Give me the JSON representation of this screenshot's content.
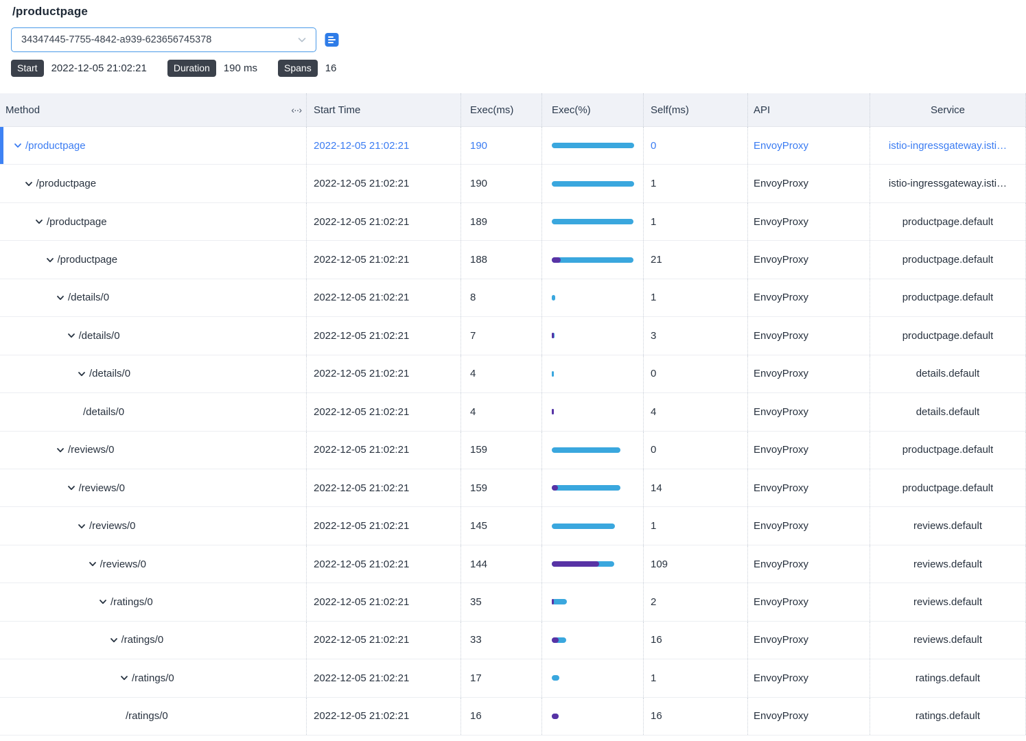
{
  "header": {
    "title": "/productpage",
    "trace_id": "34347445-7755-4842-a939-623656745378",
    "badges": [
      {
        "label": "Start",
        "value": "2022-12-05 21:02:21"
      },
      {
        "label": "Duration",
        "value": "190 ms"
      },
      {
        "label": "Spans",
        "value": "16"
      }
    ]
  },
  "icons": {
    "select_caret": "chevron-down-icon",
    "copy": "copy-icon",
    "column_resize": "column-resize-icon",
    "resize_glyph": "‹··›"
  },
  "colors": {
    "accent_blue": "#3b7cf2",
    "selected_indicator": "#3e82f4",
    "bar_blue": "#3aa7de",
    "bar_purple": "#5833a5",
    "badge_bg": "#3b414b",
    "header_bg": "#f0f2f7",
    "select_border": "#4a9ae8"
  },
  "table": {
    "columns": [
      "Method",
      "Start Time",
      "Exec(ms)",
      "Exec(%)",
      "Self(ms)",
      "API",
      "Service"
    ],
    "total_ms": 190,
    "rows": [
      {
        "method": "/productpage",
        "level": 0,
        "expandable": true,
        "selected": true,
        "start_time": "2022-12-05 21:02:21",
        "exec_ms": 190,
        "self_ms": 0,
        "api": "EnvoyProxy",
        "service": "istio-ingressgateway.isti…"
      },
      {
        "method": "/productpage",
        "level": 1,
        "expandable": true,
        "selected": false,
        "start_time": "2022-12-05 21:02:21",
        "exec_ms": 190,
        "self_ms": 1,
        "api": "EnvoyProxy",
        "service": "istio-ingressgateway.isti…"
      },
      {
        "method": "/productpage",
        "level": 2,
        "expandable": true,
        "selected": false,
        "start_time": "2022-12-05 21:02:21",
        "exec_ms": 189,
        "self_ms": 1,
        "api": "EnvoyProxy",
        "service": "productpage.default"
      },
      {
        "method": "/productpage",
        "level": 3,
        "expandable": true,
        "selected": false,
        "start_time": "2022-12-05 21:02:21",
        "exec_ms": 188,
        "self_ms": 21,
        "api": "EnvoyProxy",
        "service": "productpage.default"
      },
      {
        "method": "/details/0",
        "level": 4,
        "expandable": true,
        "selected": false,
        "start_time": "2022-12-05 21:02:21",
        "exec_ms": 8,
        "self_ms": 1,
        "api": "EnvoyProxy",
        "service": "productpage.default"
      },
      {
        "method": "/details/0",
        "level": 5,
        "expandable": true,
        "selected": false,
        "start_time": "2022-12-05 21:02:21",
        "exec_ms": 7,
        "self_ms": 3,
        "api": "EnvoyProxy",
        "service": "productpage.default"
      },
      {
        "method": "/details/0",
        "level": 6,
        "expandable": true,
        "selected": false,
        "start_time": "2022-12-05 21:02:21",
        "exec_ms": 4,
        "self_ms": 0,
        "api": "EnvoyProxy",
        "service": "details.default"
      },
      {
        "method": "/details/0",
        "level": 7,
        "expandable": false,
        "selected": false,
        "start_time": "2022-12-05 21:02:21",
        "exec_ms": 4,
        "self_ms": 4,
        "api": "EnvoyProxy",
        "service": "details.default"
      },
      {
        "method": "/reviews/0",
        "level": 4,
        "expandable": true,
        "selected": false,
        "start_time": "2022-12-05 21:02:21",
        "exec_ms": 159,
        "self_ms": 0,
        "api": "EnvoyProxy",
        "service": "productpage.default"
      },
      {
        "method": "/reviews/0",
        "level": 5,
        "expandable": true,
        "selected": false,
        "start_time": "2022-12-05 21:02:21",
        "exec_ms": 159,
        "self_ms": 14,
        "api": "EnvoyProxy",
        "service": "productpage.default"
      },
      {
        "method": "/reviews/0",
        "level": 6,
        "expandable": true,
        "selected": false,
        "start_time": "2022-12-05 21:02:21",
        "exec_ms": 145,
        "self_ms": 1,
        "api": "EnvoyProxy",
        "service": "reviews.default"
      },
      {
        "method": "/reviews/0",
        "level": 7,
        "expandable": true,
        "selected": false,
        "start_time": "2022-12-05 21:02:21",
        "exec_ms": 144,
        "self_ms": 109,
        "api": "EnvoyProxy",
        "service": "reviews.default"
      },
      {
        "method": "/ratings/0",
        "level": 8,
        "expandable": true,
        "selected": false,
        "start_time": "2022-12-05 21:02:21",
        "exec_ms": 35,
        "self_ms": 2,
        "api": "EnvoyProxy",
        "service": "reviews.default"
      },
      {
        "method": "/ratings/0",
        "level": 9,
        "expandable": true,
        "selected": false,
        "start_time": "2022-12-05 21:02:21",
        "exec_ms": 33,
        "self_ms": 16,
        "api": "EnvoyProxy",
        "service": "reviews.default"
      },
      {
        "method": "/ratings/0",
        "level": 10,
        "expandable": true,
        "selected": false,
        "start_time": "2022-12-05 21:02:21",
        "exec_ms": 17,
        "self_ms": 1,
        "api": "EnvoyProxy",
        "service": "ratings.default"
      },
      {
        "method": "/ratings/0",
        "level": 11,
        "expandable": false,
        "selected": false,
        "start_time": "2022-12-05 21:02:21",
        "exec_ms": 16,
        "self_ms": 16,
        "api": "EnvoyProxy",
        "service": "ratings.default"
      }
    ]
  }
}
